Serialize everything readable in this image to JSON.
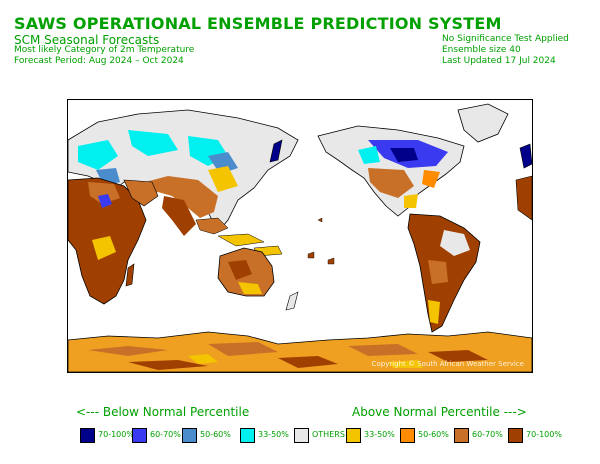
{
  "header": {
    "title": "SAWS OPERATIONAL ENSEMBLE PREDICTION SYSTEM",
    "subtitle": "SCM Seasonal Forecasts",
    "line2": "Most likely Category of 2m Temperature",
    "line3": "Forecast Period: Aug 2024 – Oct 2024",
    "right1": "No Significance Test Applied",
    "right2": "Ensemble size 40",
    "right3": "Last Updated 17 Jul 2024"
  },
  "map": {
    "copyright": "Copyright © South African Weather Service"
  },
  "legend": {
    "below_header": "<--- Below Normal Percentile",
    "above_header": "Above Normal Percentile --->",
    "items": [
      {
        "label": "70-100%",
        "color": "#00008b"
      },
      {
        "label": "60-70%",
        "color": "#3a3af0"
      },
      {
        "label": "50-60%",
        "color": "#4a8ccc"
      },
      {
        "label": "33-50%",
        "color": "#00f0f0"
      },
      {
        "label": "OTHERS",
        "color": "#e8e8e8"
      },
      {
        "label": "33-50%",
        "color": "#f5c400"
      },
      {
        "label": "50-60%",
        "color": "#ff8c00"
      },
      {
        "label": "60-70%",
        "color": "#c87028"
      },
      {
        "label": "70-100%",
        "color": "#a04000"
      }
    ]
  }
}
